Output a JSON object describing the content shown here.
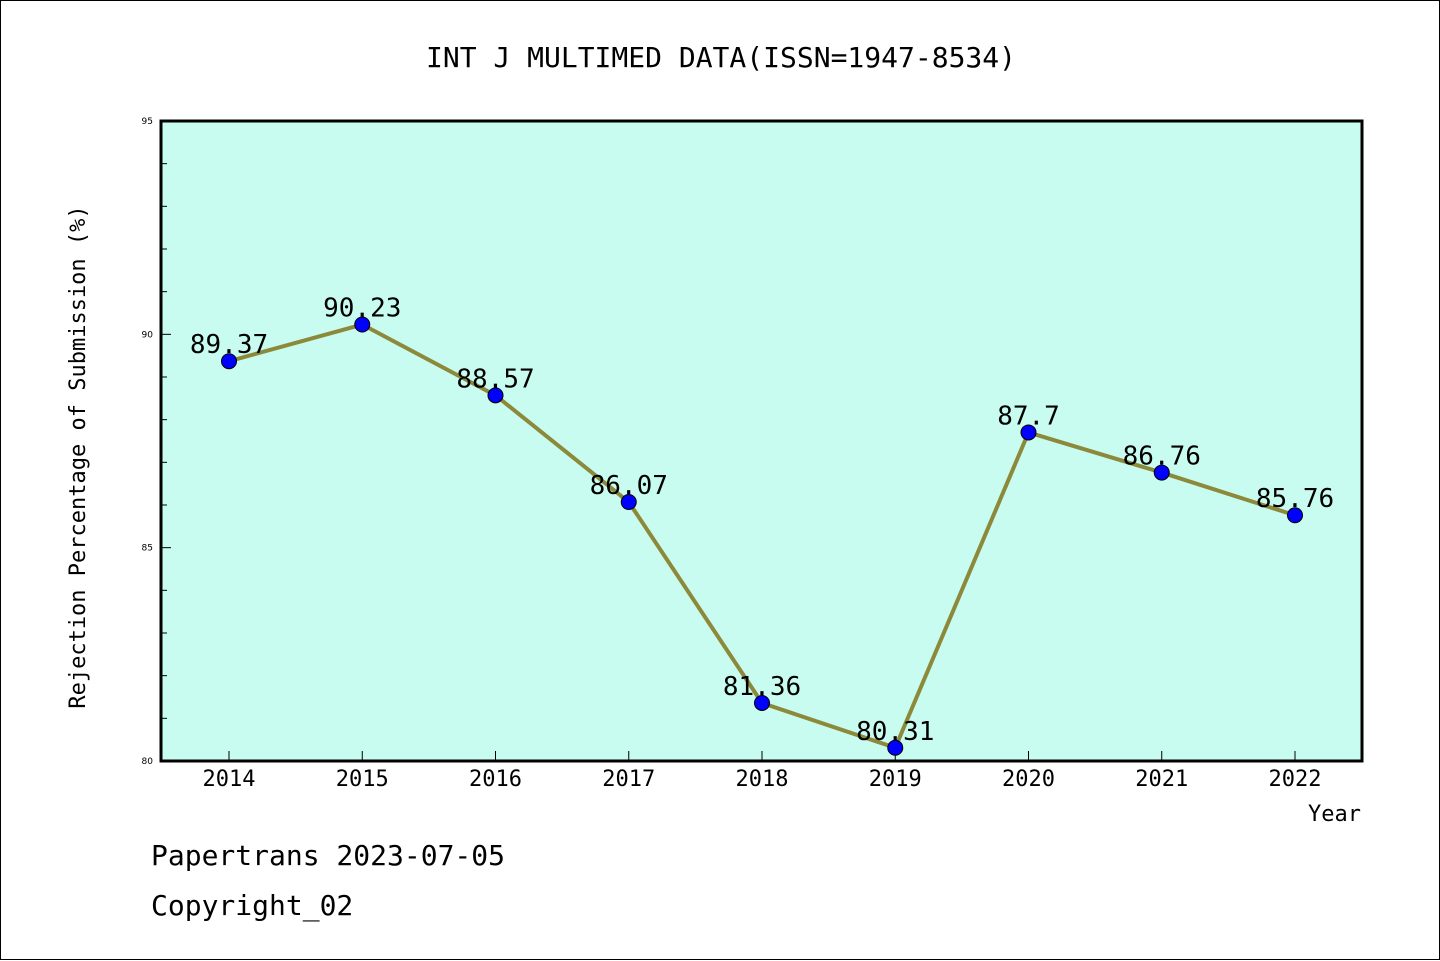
{
  "chart_data": {
    "type": "line",
    "title": "INT J MULTIMED DATA(ISSN=1947-8534)",
    "xlabel": "Year",
    "ylabel": "Rejection Percentage of Submission (%)",
    "categories": [
      "2014",
      "2015",
      "2016",
      "2017",
      "2018",
      "2019",
      "2020",
      "2021",
      "2022"
    ],
    "values": [
      89.37,
      90.23,
      88.57,
      86.07,
      81.36,
      80.31,
      87.7,
      86.76,
      85.76
    ],
    "data_labels": [
      "89.37",
      "90.23",
      "88.57",
      "86.07",
      "81.36",
      "80.31",
      "87.7",
      "86.76",
      "85.76"
    ],
    "ylim": [
      80,
      95
    ],
    "yticks": [
      80,
      85,
      90,
      95
    ],
    "yticks_minor_step": 1,
    "grid": false,
    "legend": "none",
    "colors": {
      "plot_background": "#c8fcf0",
      "line": "#8c8a3a",
      "marker": "#0000ff"
    }
  },
  "footer": {
    "line1": "Papertrans 2023-07-05",
    "line2": "Copyright_02"
  }
}
